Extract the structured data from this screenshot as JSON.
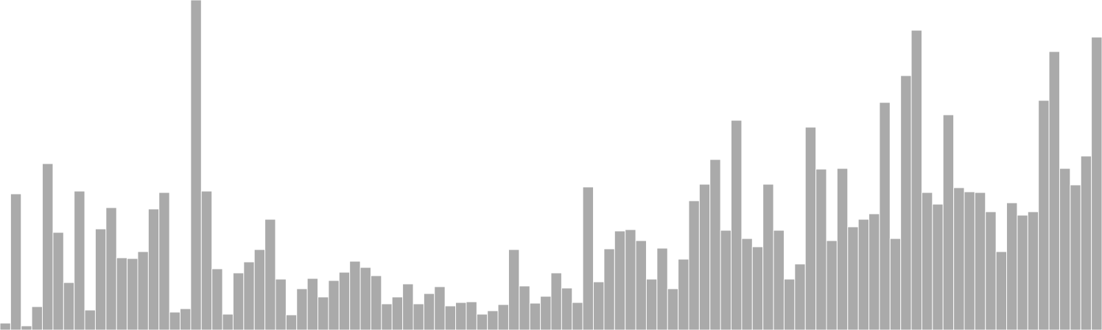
{
  "chart_data": {
    "type": "bar",
    "bar_color": "#aaaaaa",
    "background": "#ffffff",
    "grid": false,
    "legend": "none",
    "title": "",
    "xlabel": "",
    "ylabel": "",
    "ylim": [
      0,
      480
    ],
    "values": [
      10,
      198,
      6,
      34,
      242,
      142,
      69,
      202,
      29,
      147,
      178,
      105,
      104,
      114,
      176,
      200,
      26,
      31,
      480,
      202,
      89,
      23,
      83,
      99,
      117,
      161,
      74,
      22,
      60,
      75,
      48,
      72,
      84,
      100,
      91,
      79,
      38,
      48,
      67,
      38,
      53,
      63,
      35,
      40,
      41,
      23,
      28,
      37,
      117,
      64,
      39,
      49,
      83,
      61,
      40,
      208,
      70,
      118,
      144,
      146,
      130,
      74,
      119,
      60,
      103,
      188,
      212,
      248,
      145,
      305,
      133,
      121,
      212,
      145,
      74,
      96,
      295,
      234,
      130,
      235,
      150,
      161,
      169,
      331,
      133,
      370,
      436,
      200,
      183,
      313,
      207,
      201,
      200,
      172,
      114,
      185,
      167,
      172,
      334,
      405,
      235,
      211,
      253,
      426
    ]
  }
}
